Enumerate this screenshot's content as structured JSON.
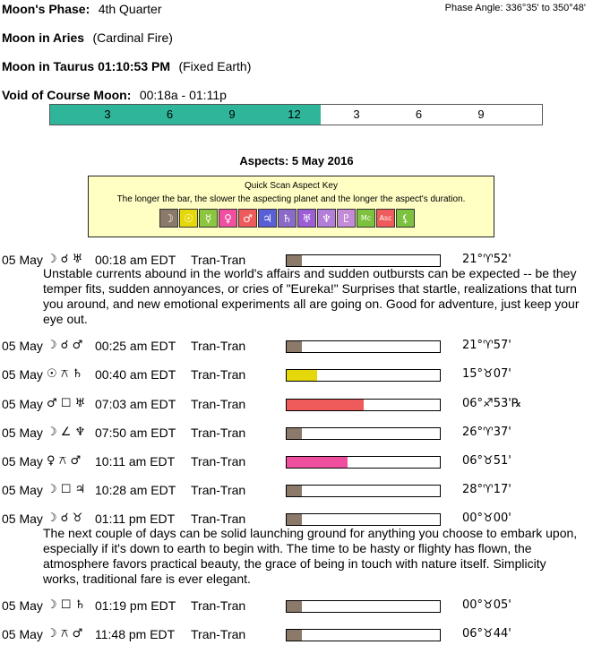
{
  "header": {
    "phase_label": "Moon's Phase:",
    "phase_value": "4th Quarter",
    "phase_angle": "Phase Angle:  336°35' to 350°48'",
    "moon_aries_label": "Moon in Aries",
    "moon_aries_value": "(Cardinal Fire)",
    "moon_taurus_label": "Moon in Taurus 01:10:53 PM",
    "moon_taurus_value": "(Fixed Earth)",
    "voc_label": "Void of Course Moon:",
    "voc_value": "00:18a -  01:11p"
  },
  "voc_bar": {
    "fill_color": "#2fb59a",
    "fill_fraction": 0.55,
    "hour_labels": [
      "3",
      "6",
      "9",
      "12",
      "3",
      "6",
      "9"
    ]
  },
  "aspects_title": "Aspects: 5 May 2016",
  "key": {
    "title": "Quick Scan Aspect Key",
    "desc": "The longer the bar, the slower the aspecting planet and the longer the aspect's duration.",
    "planets": [
      {
        "glyph": "☽",
        "color": "#8b7a6a"
      },
      {
        "glyph": "☉",
        "color": "#e5d80a"
      },
      {
        "glyph": "☿",
        "color": "#8cc63f"
      },
      {
        "glyph": "♀",
        "color": "#f04fa0"
      },
      {
        "glyph": "♂",
        "color": "#ef5b5b"
      },
      {
        "glyph": "♃",
        "color": "#5a5fd6"
      },
      {
        "glyph": "♄",
        "color": "#8a6cc8"
      },
      {
        "glyph": "♅",
        "color": "#9b5ed6"
      },
      {
        "glyph": "♆",
        "color": "#b27ed8"
      },
      {
        "glyph": "♇",
        "color": "#c48bd6"
      },
      {
        "glyph": "Mc",
        "color": "#7cc23f"
      },
      {
        "glyph": "Asc",
        "color": "#ef5b5b"
      },
      {
        "glyph": "⚸",
        "color": "#7cc23f"
      }
    ]
  },
  "aspects": [
    {
      "date": "05 May",
      "glyphs": "☽ ☌ ♅",
      "time": "00:18 am EDT",
      "type": "Tran-Tran",
      "bar_fraction": 0.1,
      "bar_color": "#8b7a6a",
      "pos": "21°♈52'",
      "desc": "Unstable currents abound in the world's affairs and sudden outbursts can be expected -- be they temper fits, sudden annoyances, or cries of \"Eureka!\" Surprises that startle, realizations that turn you around, and new emotional experiments all are going on. Good for adventure, just keep your eye out."
    },
    {
      "date": "05 May",
      "glyphs": "☽ ☌ ♂",
      "time": "00:25 am EDT",
      "type": "Tran-Tran",
      "bar_fraction": 0.1,
      "bar_color": "#8b7a6a",
      "pos": "21°♈57'",
      "desc": ""
    },
    {
      "date": "05 May",
      "glyphs": "☉ ⚻ ♄",
      "time": "00:40 am EDT",
      "type": "Tran-Tran",
      "bar_fraction": 0.2,
      "bar_color": "#e5d80a",
      "pos": "15°♉07'",
      "desc": ""
    },
    {
      "date": "05 May",
      "glyphs": "♂ ☐ ♅",
      "time": "07:03 am EDT",
      "type": "Tran-Tran",
      "bar_fraction": 0.5,
      "bar_color": "#ef5b5b",
      "pos": "06°♐53'℞",
      "desc": ""
    },
    {
      "date": "05 May",
      "glyphs": "☽ ∠ ♆",
      "time": "07:50 am EDT",
      "type": "Tran-Tran",
      "bar_fraction": 0.1,
      "bar_color": "#8b7a6a",
      "pos": "26°♈37'",
      "desc": ""
    },
    {
      "date": "05 May",
      "glyphs": "♀ ⚻ ♂",
      "time": "10:11 am EDT",
      "type": "Tran-Tran",
      "bar_fraction": 0.4,
      "bar_color": "#f04fa0",
      "pos": "06°♉51'",
      "desc": ""
    },
    {
      "date": "05 May",
      "glyphs": "☽ ☐ ♃",
      "time": "10:28 am EDT",
      "type": "Tran-Tran",
      "bar_fraction": 0.1,
      "bar_color": "#8b7a6a",
      "pos": "28°♈17'",
      "desc": ""
    },
    {
      "date": "05 May",
      "glyphs": "☽ ☌ ♉",
      "time": "01:11 pm EDT",
      "type": "Tran-Tran",
      "bar_fraction": 0.1,
      "bar_color": "#8b7a6a",
      "pos": "00°♉00'",
      "desc": "The next couple of days can be solid launching ground for anything you choose to embark upon, especially if it's down to earth to begin with. The time to be hasty or flighty has flown, the atmosphere favors practical beauty, the grace of being in touch with nature itself. Simplicity works, traditional fare is ever elegant."
    },
    {
      "date": "05 May",
      "glyphs": "☽ ☐ ♄",
      "time": "01:19 pm EDT",
      "type": "Tran-Tran",
      "bar_fraction": 0.1,
      "bar_color": "#8b7a6a",
      "pos": "00°♉05'",
      "desc": ""
    },
    {
      "date": "05 May",
      "glyphs": "☽ ⚻ ♂",
      "time": "11:48 pm EDT",
      "type": "Tran-Tran",
      "bar_fraction": 0.1,
      "bar_color": "#8b7a6a",
      "pos": "06°♉44'",
      "desc": ""
    }
  ]
}
